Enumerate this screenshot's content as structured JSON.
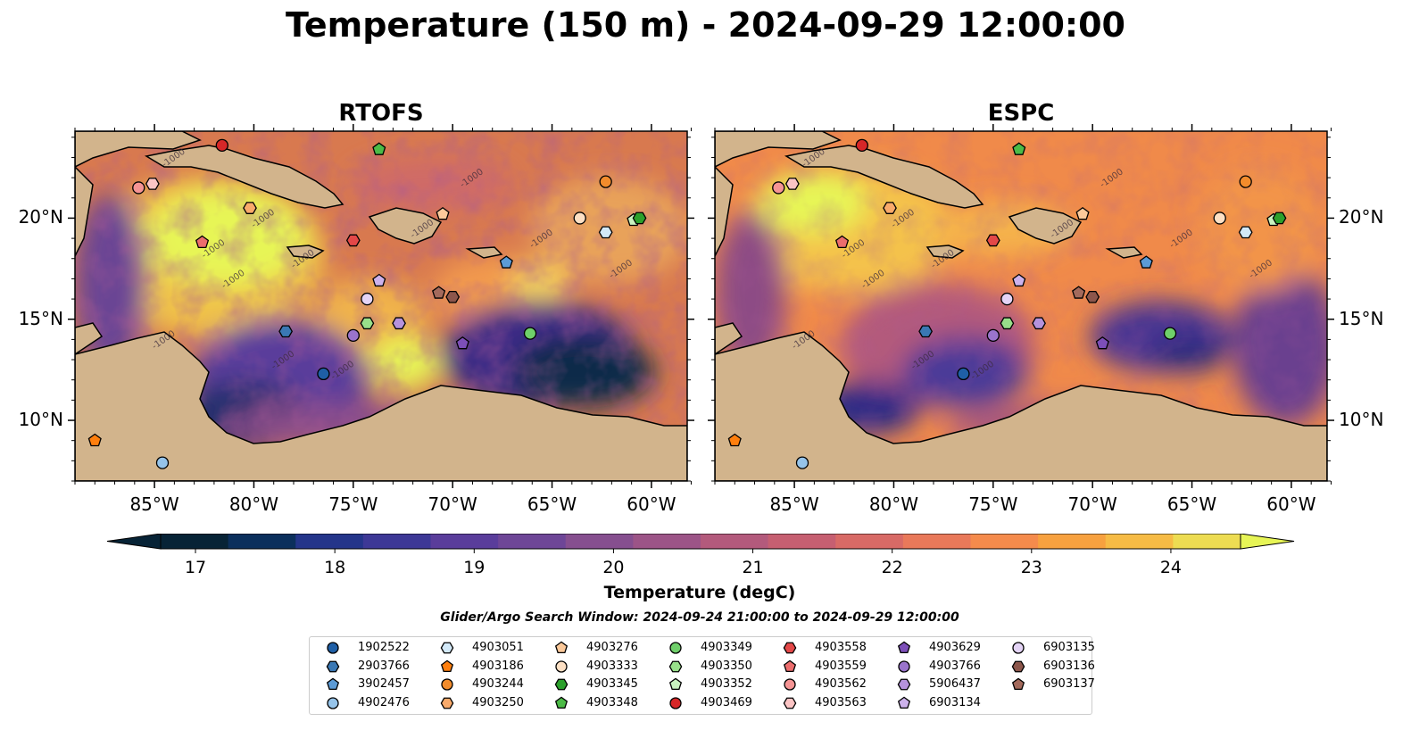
{
  "title": "Temperature (150 m) - 2024-09-29 12:00:00",
  "panels": [
    {
      "title": "RTOFS"
    },
    {
      "title": "ESPC"
    }
  ],
  "lon_ticks": [
    "85°W",
    "80°W",
    "75°W",
    "70°W",
    "65°W",
    "60°W"
  ],
  "lon_values": [
    -85,
    -80,
    -75,
    -70,
    -65,
    -60
  ],
  "lat_ticks": [
    "10°N",
    "15°N",
    "20°N"
  ],
  "lat_values": [
    10,
    15,
    20
  ],
  "map_extent": {
    "lon_min": -89,
    "lon_max": -58.2,
    "lat_min": 7,
    "lat_max": 24.3
  },
  "contour_label": "-1000",
  "colorbar": {
    "label": "Temperature (degC)",
    "min": 16.75,
    "max": 24.5,
    "step": 0.5,
    "ticks": [
      "17",
      "18",
      "19",
      "20",
      "21",
      "22",
      "23",
      "24"
    ],
    "tick_values": [
      17,
      18,
      19,
      20,
      21,
      22,
      23,
      24
    ]
  },
  "search_window": "Glider/Argo Search Window: 2024-09-24 21:00:00 to 2024-09-29 12:00:00",
  "colors": {
    "land": "#d2b48c",
    "shelf": "#92b4e0",
    "deep_cold": "#072336",
    "warm": "#e7f556"
  },
  "legend": [
    {
      "id": "1902522",
      "marker": "circle",
      "color": "#1f5fa6"
    },
    {
      "id": "2903766",
      "marker": "hexagon",
      "color": "#3a78b4"
    },
    {
      "id": "3902457",
      "marker": "pentagon",
      "color": "#5c9bd6"
    },
    {
      "id": "4902476",
      "marker": "circle",
      "color": "#96c4ea"
    },
    {
      "id": "4903051",
      "marker": "hexagon",
      "color": "#d3e9f8"
    },
    {
      "id": "4903186",
      "marker": "pentagon",
      "color": "#ff7f0e"
    },
    {
      "id": "4903244",
      "marker": "circle",
      "color": "#f28c2c"
    },
    {
      "id": "4903250",
      "marker": "hexagon",
      "color": "#f9aa6b"
    },
    {
      "id": "4903276",
      "marker": "pentagon",
      "color": "#fcc99a"
    },
    {
      "id": "4903333",
      "marker": "circle",
      "color": "#fde0c4"
    },
    {
      "id": "4903345",
      "marker": "hexagon",
      "color": "#2ca02c"
    },
    {
      "id": "4903348",
      "marker": "pentagon",
      "color": "#4cbb47"
    },
    {
      "id": "4903349",
      "marker": "circle",
      "color": "#6fcf6a"
    },
    {
      "id": "4903350",
      "marker": "hexagon",
      "color": "#98df8a"
    },
    {
      "id": "4903352",
      "marker": "pentagon",
      "color": "#c9f3c0"
    },
    {
      "id": "4903469",
      "marker": "circle",
      "color": "#d62728"
    },
    {
      "id": "4903558",
      "marker": "hexagon",
      "color": "#e34848"
    },
    {
      "id": "4903559",
      "marker": "pentagon",
      "color": "#ec6d6d"
    },
    {
      "id": "4903562",
      "marker": "circle",
      "color": "#f59494"
    },
    {
      "id": "4903563",
      "marker": "hexagon",
      "color": "#fbc4c4"
    },
    {
      "id": "4903629",
      "marker": "pentagon",
      "color": "#7d4fb8"
    },
    {
      "id": "4903766",
      "marker": "circle",
      "color": "#9a74cc"
    },
    {
      "id": "5906437",
      "marker": "hexagon",
      "color": "#b592dc"
    },
    {
      "id": "6903134",
      "marker": "pentagon",
      "color": "#cdb2ec"
    },
    {
      "id": "6903135",
      "marker": "circle",
      "color": "#e4d4f6"
    },
    {
      "id": "6903136",
      "marker": "hexagon",
      "color": "#8c564b"
    },
    {
      "id": "6903137",
      "marker": "pentagon",
      "color": "#a46a5c"
    }
  ],
  "observations": [
    {
      "id": "4903469",
      "lon": -81.6,
      "lat": 23.6
    },
    {
      "id": "4903562",
      "lon": -85.8,
      "lat": 21.5
    },
    {
      "id": "4903563",
      "lon": -85.1,
      "lat": 21.7
    },
    {
      "id": "4903348",
      "lon": -73.7,
      "lat": 23.4
    },
    {
      "id": "4903244",
      "lon": -62.3,
      "lat": 21.8
    },
    {
      "id": "4903333",
      "lon": -63.6,
      "lat": 20.0
    },
    {
      "id": "4903051",
      "lon": -62.3,
      "lat": 19.3
    },
    {
      "id": "4903352",
      "lon": -60.9,
      "lat": 19.9
    },
    {
      "id": "4903345",
      "lon": -60.6,
      "lat": 20.0
    },
    {
      "id": "4903276",
      "lon": -70.5,
      "lat": 20.2
    },
    {
      "id": "4903250",
      "lon": -80.2,
      "lat": 20.5
    },
    {
      "id": "4903559",
      "lon": -82.6,
      "lat": 18.8
    },
    {
      "id": "4903558",
      "lon": -75.0,
      "lat": 18.9
    },
    {
      "id": "3902457",
      "lon": -67.3,
      "lat": 17.8
    },
    {
      "id": "6903134",
      "lon": -73.7,
      "lat": 16.9
    },
    {
      "id": "6903135",
      "lon": -74.3,
      "lat": 16.0
    },
    {
      "id": "6903137",
      "lon": -70.7,
      "lat": 16.3
    },
    {
      "id": "6903136",
      "lon": -70.0,
      "lat": 16.1
    },
    {
      "id": "4903350",
      "lon": -74.3,
      "lat": 14.8
    },
    {
      "id": "5906437",
      "lon": -72.7,
      "lat": 14.8
    },
    {
      "id": "4903766",
      "lon": -75.0,
      "lat": 14.2
    },
    {
      "id": "4903629",
      "lon": -69.5,
      "lat": 13.8
    },
    {
      "id": "4903349",
      "lon": -66.1,
      "lat": 14.3
    },
    {
      "id": "2903766",
      "lon": -78.4,
      "lat": 14.4
    },
    {
      "id": "1902522",
      "lon": -76.5,
      "lat": 12.3
    },
    {
      "id": "4903186",
      "lon": -88.0,
      "lat": 9.0
    },
    {
      "id": "4902476",
      "lon": -84.6,
      "lat": 7.9
    }
  ]
}
